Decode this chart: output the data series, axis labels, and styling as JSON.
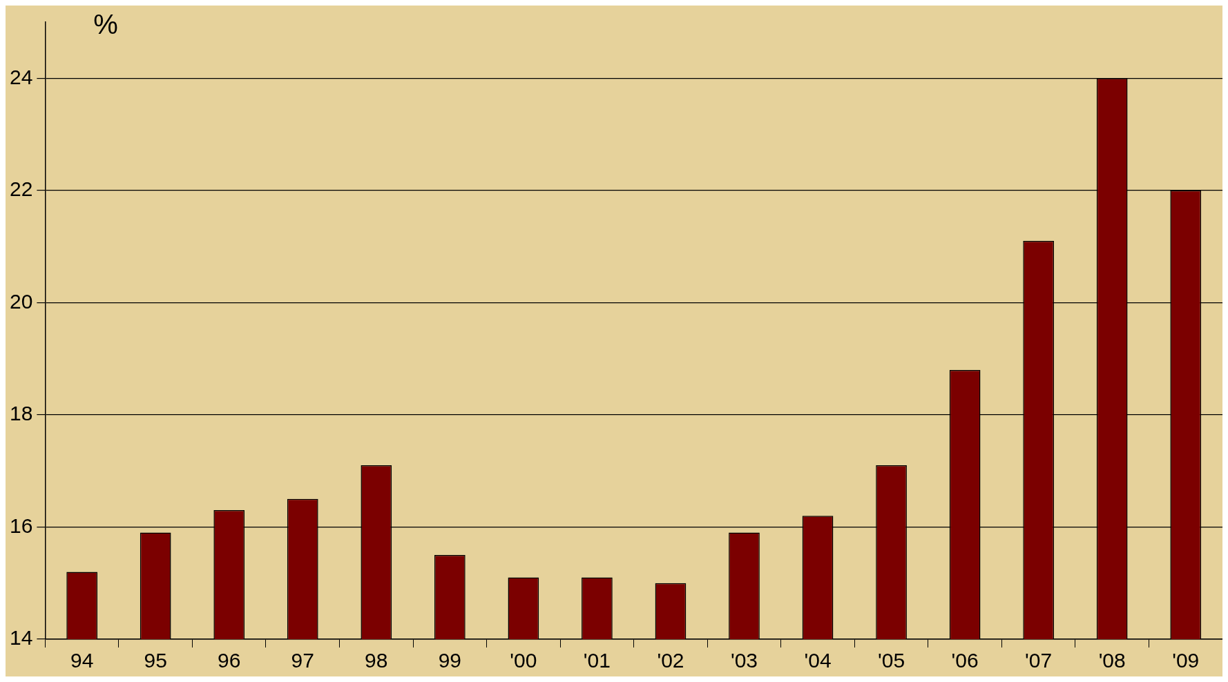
{
  "chart_data": {
    "type": "bar",
    "ylabel": "%",
    "categories": [
      "94",
      "95",
      "96",
      "97",
      "98",
      "99",
      "'00",
      "'01",
      "'02",
      "'03",
      "'04",
      "'05",
      "'06",
      "'07",
      "'08",
      "'09"
    ],
    "values": [
      15.2,
      15.9,
      16.3,
      16.5,
      17.1,
      15.5,
      15.1,
      15.1,
      15.0,
      15.9,
      16.2,
      17.1,
      18.8,
      21.1,
      24,
      22
    ],
    "color": "#7b0000",
    "ylim": [
      14,
      25
    ],
    "yticks": [
      14,
      16,
      18,
      20,
      22,
      24
    ],
    "grid": "y",
    "legend": false
  }
}
